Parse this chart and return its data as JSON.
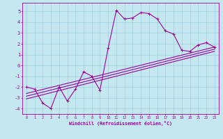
{
  "xlabel": "Windchill (Refroidissement éolien,°C)",
  "bg_color": "#c5e8f0",
  "grid_color": "#9ecfdc",
  "line_color": "#990099",
  "xlim": [
    -0.5,
    23.5
  ],
  "ylim": [
    -4.5,
    5.8
  ],
  "xticks": [
    0,
    1,
    2,
    3,
    4,
    5,
    6,
    7,
    8,
    9,
    10,
    11,
    12,
    13,
    14,
    15,
    16,
    17,
    18,
    19,
    20,
    21,
    22,
    23
  ],
  "yticks": [
    -4,
    -3,
    -2,
    -1,
    0,
    1,
    2,
    3,
    4,
    5
  ],
  "main_x": [
    0,
    1,
    2,
    3,
    4,
    5,
    6,
    7,
    8,
    9,
    10,
    11,
    12,
    13,
    14,
    15,
    16,
    17,
    18,
    19,
    20,
    21,
    22,
    23
  ],
  "main_y": [
    -2.0,
    -2.2,
    -3.5,
    -4.0,
    -2.0,
    -3.3,
    -2.2,
    -0.6,
    -1.0,
    -2.3,
    1.6,
    5.1,
    4.3,
    4.4,
    4.9,
    4.8,
    4.3,
    3.2,
    2.9,
    1.4,
    1.3,
    1.9,
    2.1,
    1.7
  ],
  "line2_x": [
    0,
    23
  ],
  "line2_y": [
    -2.6,
    1.7
  ],
  "line3_x": [
    0,
    23
  ],
  "line3_y": [
    -3.1,
    1.3
  ],
  "line4_x": [
    0,
    23
  ],
  "line4_y": [
    -2.85,
    1.5
  ]
}
